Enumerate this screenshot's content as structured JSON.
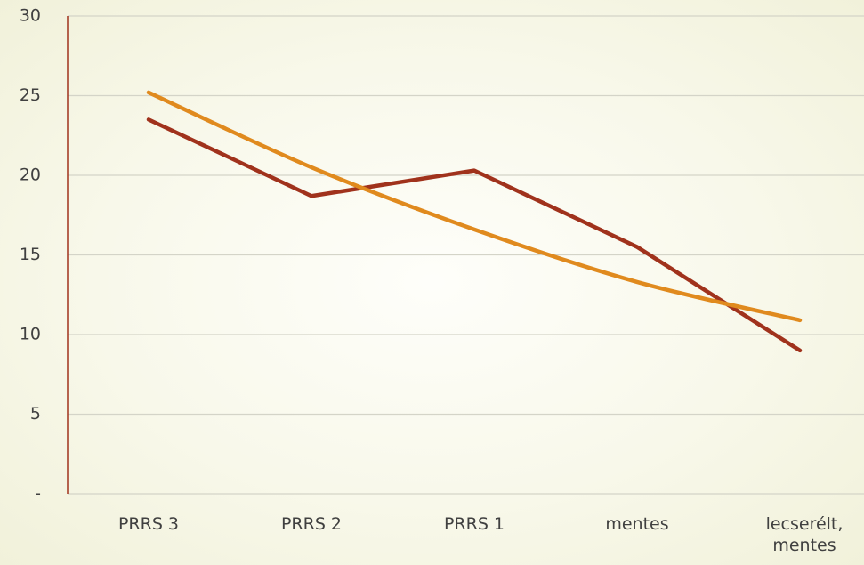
{
  "chart_data": {
    "type": "line",
    "categories": [
      "PRRS 3",
      "PRRS 2",
      "PRRS 1",
      "mentes",
      "lecserélt, mentes"
    ],
    "series": [
      {
        "color": "#a0321c",
        "values": [
          23.5,
          18.7,
          20.3,
          15.5,
          9.0
        ]
      },
      {
        "color": "#e08a1e",
        "values": [
          25.2,
          20.5,
          16.6,
          13.3,
          10.9
        ],
        "smooth": true
      }
    ],
    "ylim": [
      0,
      30
    ],
    "yticks": [
      {
        "value": 0,
        "label": "-"
      },
      5,
      10,
      15,
      20,
      25,
      30
    ],
    "grid": true
  }
}
